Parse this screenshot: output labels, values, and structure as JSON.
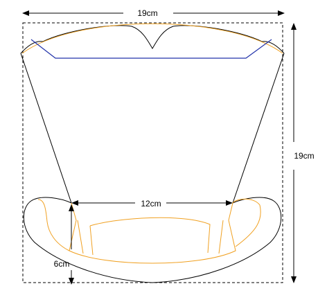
{
  "labels": {
    "top_width": "19cm",
    "right_height": "19cm",
    "middle_width": "12cm",
    "bottom_height": "6cm"
  },
  "colors": {
    "outline": "#000000",
    "orange_pattern": "#f0a020",
    "blue_pattern": "#2233aa",
    "background": "#ffffff"
  }
}
